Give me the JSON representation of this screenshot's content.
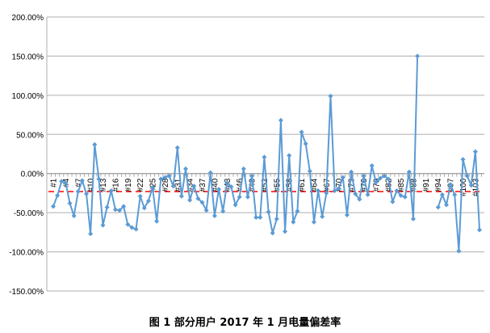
{
  "chart_data": {
    "type": "line",
    "title": "",
    "caption": "图 1  部分用户 2017 年 1 月电量偏差率",
    "xlabel": "",
    "ylabel": "",
    "ylim": [
      -150,
      200
    ],
    "y_ticks": [
      200,
      150,
      100,
      50,
      0,
      -50,
      -100,
      -150
    ],
    "y_tick_format": "percent_2dp",
    "x_label_every": 3,
    "grid": true,
    "legend": "none",
    "series_color": "#5B9BD5",
    "reference_line": {
      "value": -23,
      "color": "#FF0000",
      "style": "dashed"
    },
    "categories_prefix": "#",
    "values": [
      -42,
      -28,
      -10,
      -12,
      -38,
      -54,
      -23,
      -9,
      -26,
      -77,
      37,
      -7,
      -66,
      -43,
      -22,
      -46,
      -47,
      -42,
      -65,
      -69,
      -71,
      -29,
      -44,
      -35,
      -18,
      -61,
      -7,
      -5,
      -3,
      -16,
      33,
      -29,
      6,
      -34,
      -16,
      -32,
      -37,
      -47,
      1,
      -54,
      -20,
      -48,
      -12,
      -17,
      -40,
      -30,
      6,
      -30,
      -3,
      -56,
      -56,
      21,
      -49,
      -76,
      -58,
      68,
      -74,
      23,
      -62,
      -48,
      53,
      38,
      3,
      -62,
      -22,
      -55,
      -25,
      99,
      -22,
      -19,
      -5,
      -53,
      2,
      -26,
      -33,
      -3,
      -27,
      10,
      -11,
      -6,
      -3,
      -7,
      -36,
      -22,
      -28,
      -30,
      2,
      -58,
      150,
      null,
      null,
      null,
      null,
      -43,
      -27,
      -40,
      -14,
      -27,
      -99,
      18,
      -3,
      -15,
      28,
      -72
    ]
  }
}
